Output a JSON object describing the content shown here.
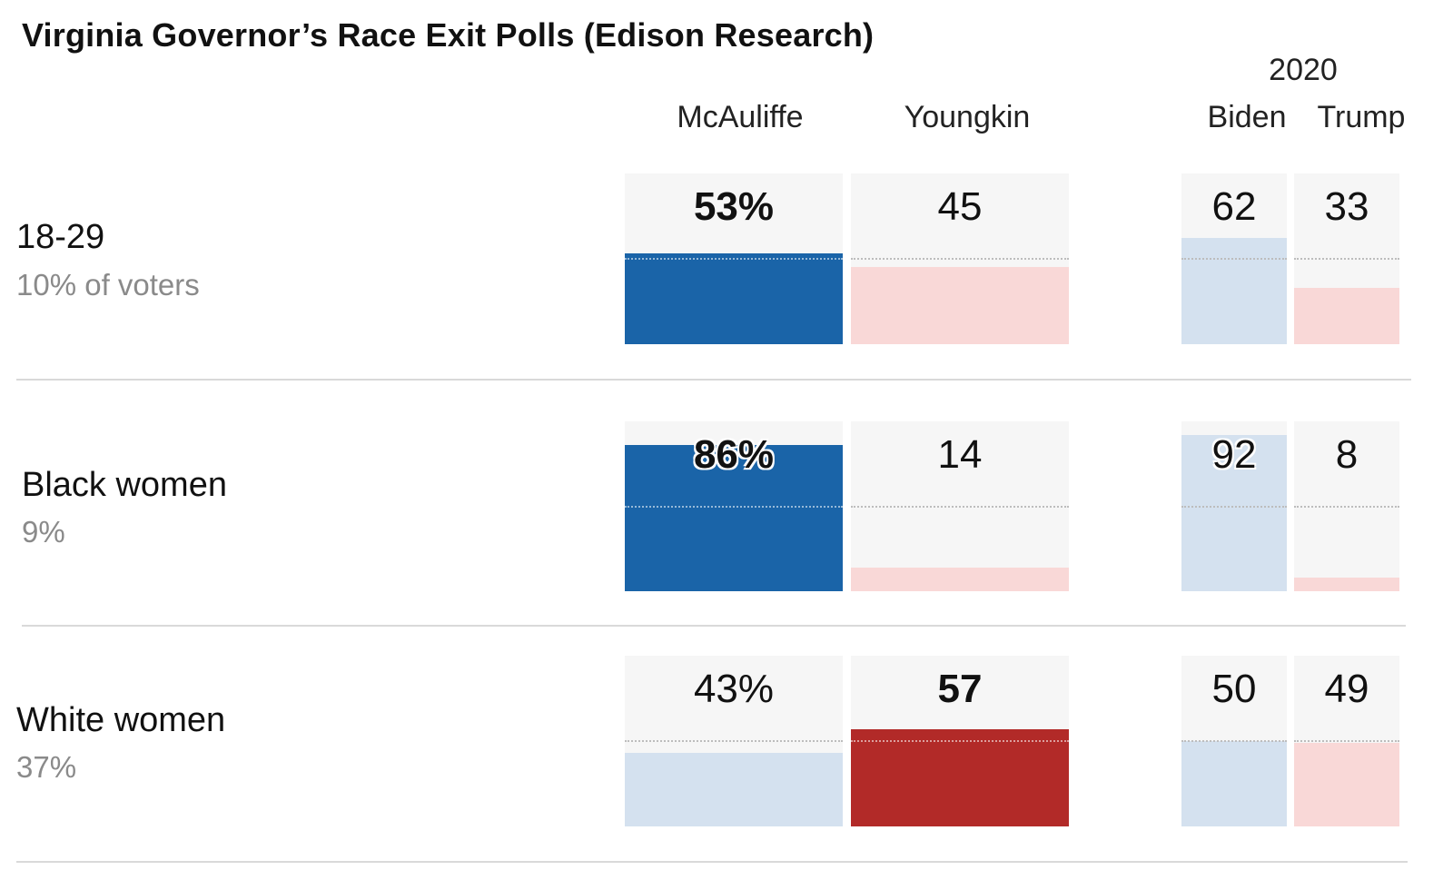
{
  "title": "Virginia Governor’s Race Exit Polls (Edison Research)",
  "headers": {
    "year_2020": "2020",
    "mcauliffe": "McAuliffe",
    "youngkin": "Youngkin",
    "biden": "Biden",
    "trump": "Trump"
  },
  "colors": {
    "dem_strong": "#1a64a8",
    "dem_light": "#d4e1ef",
    "rep_strong": "#b22a28",
    "rep_light": "#f9d8d7",
    "cell_bg": "#f6f6f6"
  },
  "rows": [
    {
      "label": "18-29",
      "sub": "10% of voters",
      "mcauliffe": "53%",
      "youngkin": "45",
      "biden": "62",
      "trump": "33"
    },
    {
      "label": "Black women",
      "sub": "9%",
      "mcauliffe": "86%",
      "youngkin": "14",
      "biden": "92",
      "trump": "8"
    },
    {
      "label": "White women",
      "sub": "37%",
      "mcauliffe": "43%",
      "youngkin": "57",
      "biden": "50",
      "trump": "49"
    }
  ],
  "chart_data": {
    "type": "bar",
    "title": "Virginia Governor’s Race Exit Polls (Edison Research)",
    "categories": [
      "18-29",
      "Black women",
      "White women"
    ],
    "category_notes": [
      "10% of voters",
      "9%",
      "37%"
    ],
    "series": [
      {
        "name": "McAuliffe",
        "values": [
          53,
          86,
          43
        ]
      },
      {
        "name": "Youngkin",
        "values": [
          45,
          14,
          57
        ]
      },
      {
        "name": "Biden",
        "group": "2020",
        "values": [
          62,
          92,
          50
        ]
      },
      {
        "name": "Trump",
        "group": "2020",
        "values": [
          33,
          8,
          49
        ]
      }
    ],
    "ylim": [
      0,
      100
    ],
    "winner": [
      "McAuliffe",
      "McAuliffe",
      "Youngkin"
    ]
  }
}
